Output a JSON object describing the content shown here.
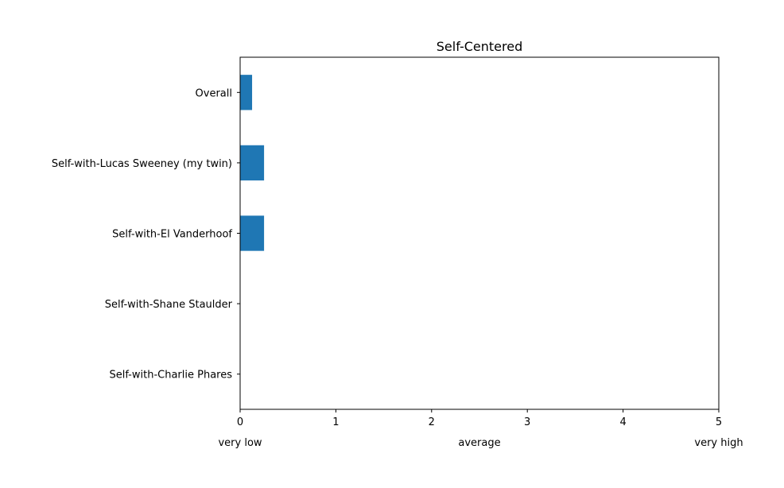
{
  "chart_data": {
    "type": "bar",
    "orientation": "horizontal",
    "title": "Self-Centered",
    "xlabel": "",
    "ylabel": "",
    "categories": [
      "Overall",
      "Self-with-Lucas Sweeney (my twin)",
      "Self-with-El Vanderhoof",
      "Self-with-Shane Staulder",
      "Self-with-Charlie Phares"
    ],
    "values": [
      0.125,
      0.25,
      0.25,
      0,
      0
    ],
    "xlim": [
      0,
      5
    ],
    "xticks": [
      "0",
      "1",
      "2",
      "3",
      "4",
      "5"
    ],
    "xtick_descriptors": [
      "very low",
      "average",
      "very high"
    ],
    "bar_color": "#1f77b4",
    "grid": false,
    "legend": "none"
  }
}
